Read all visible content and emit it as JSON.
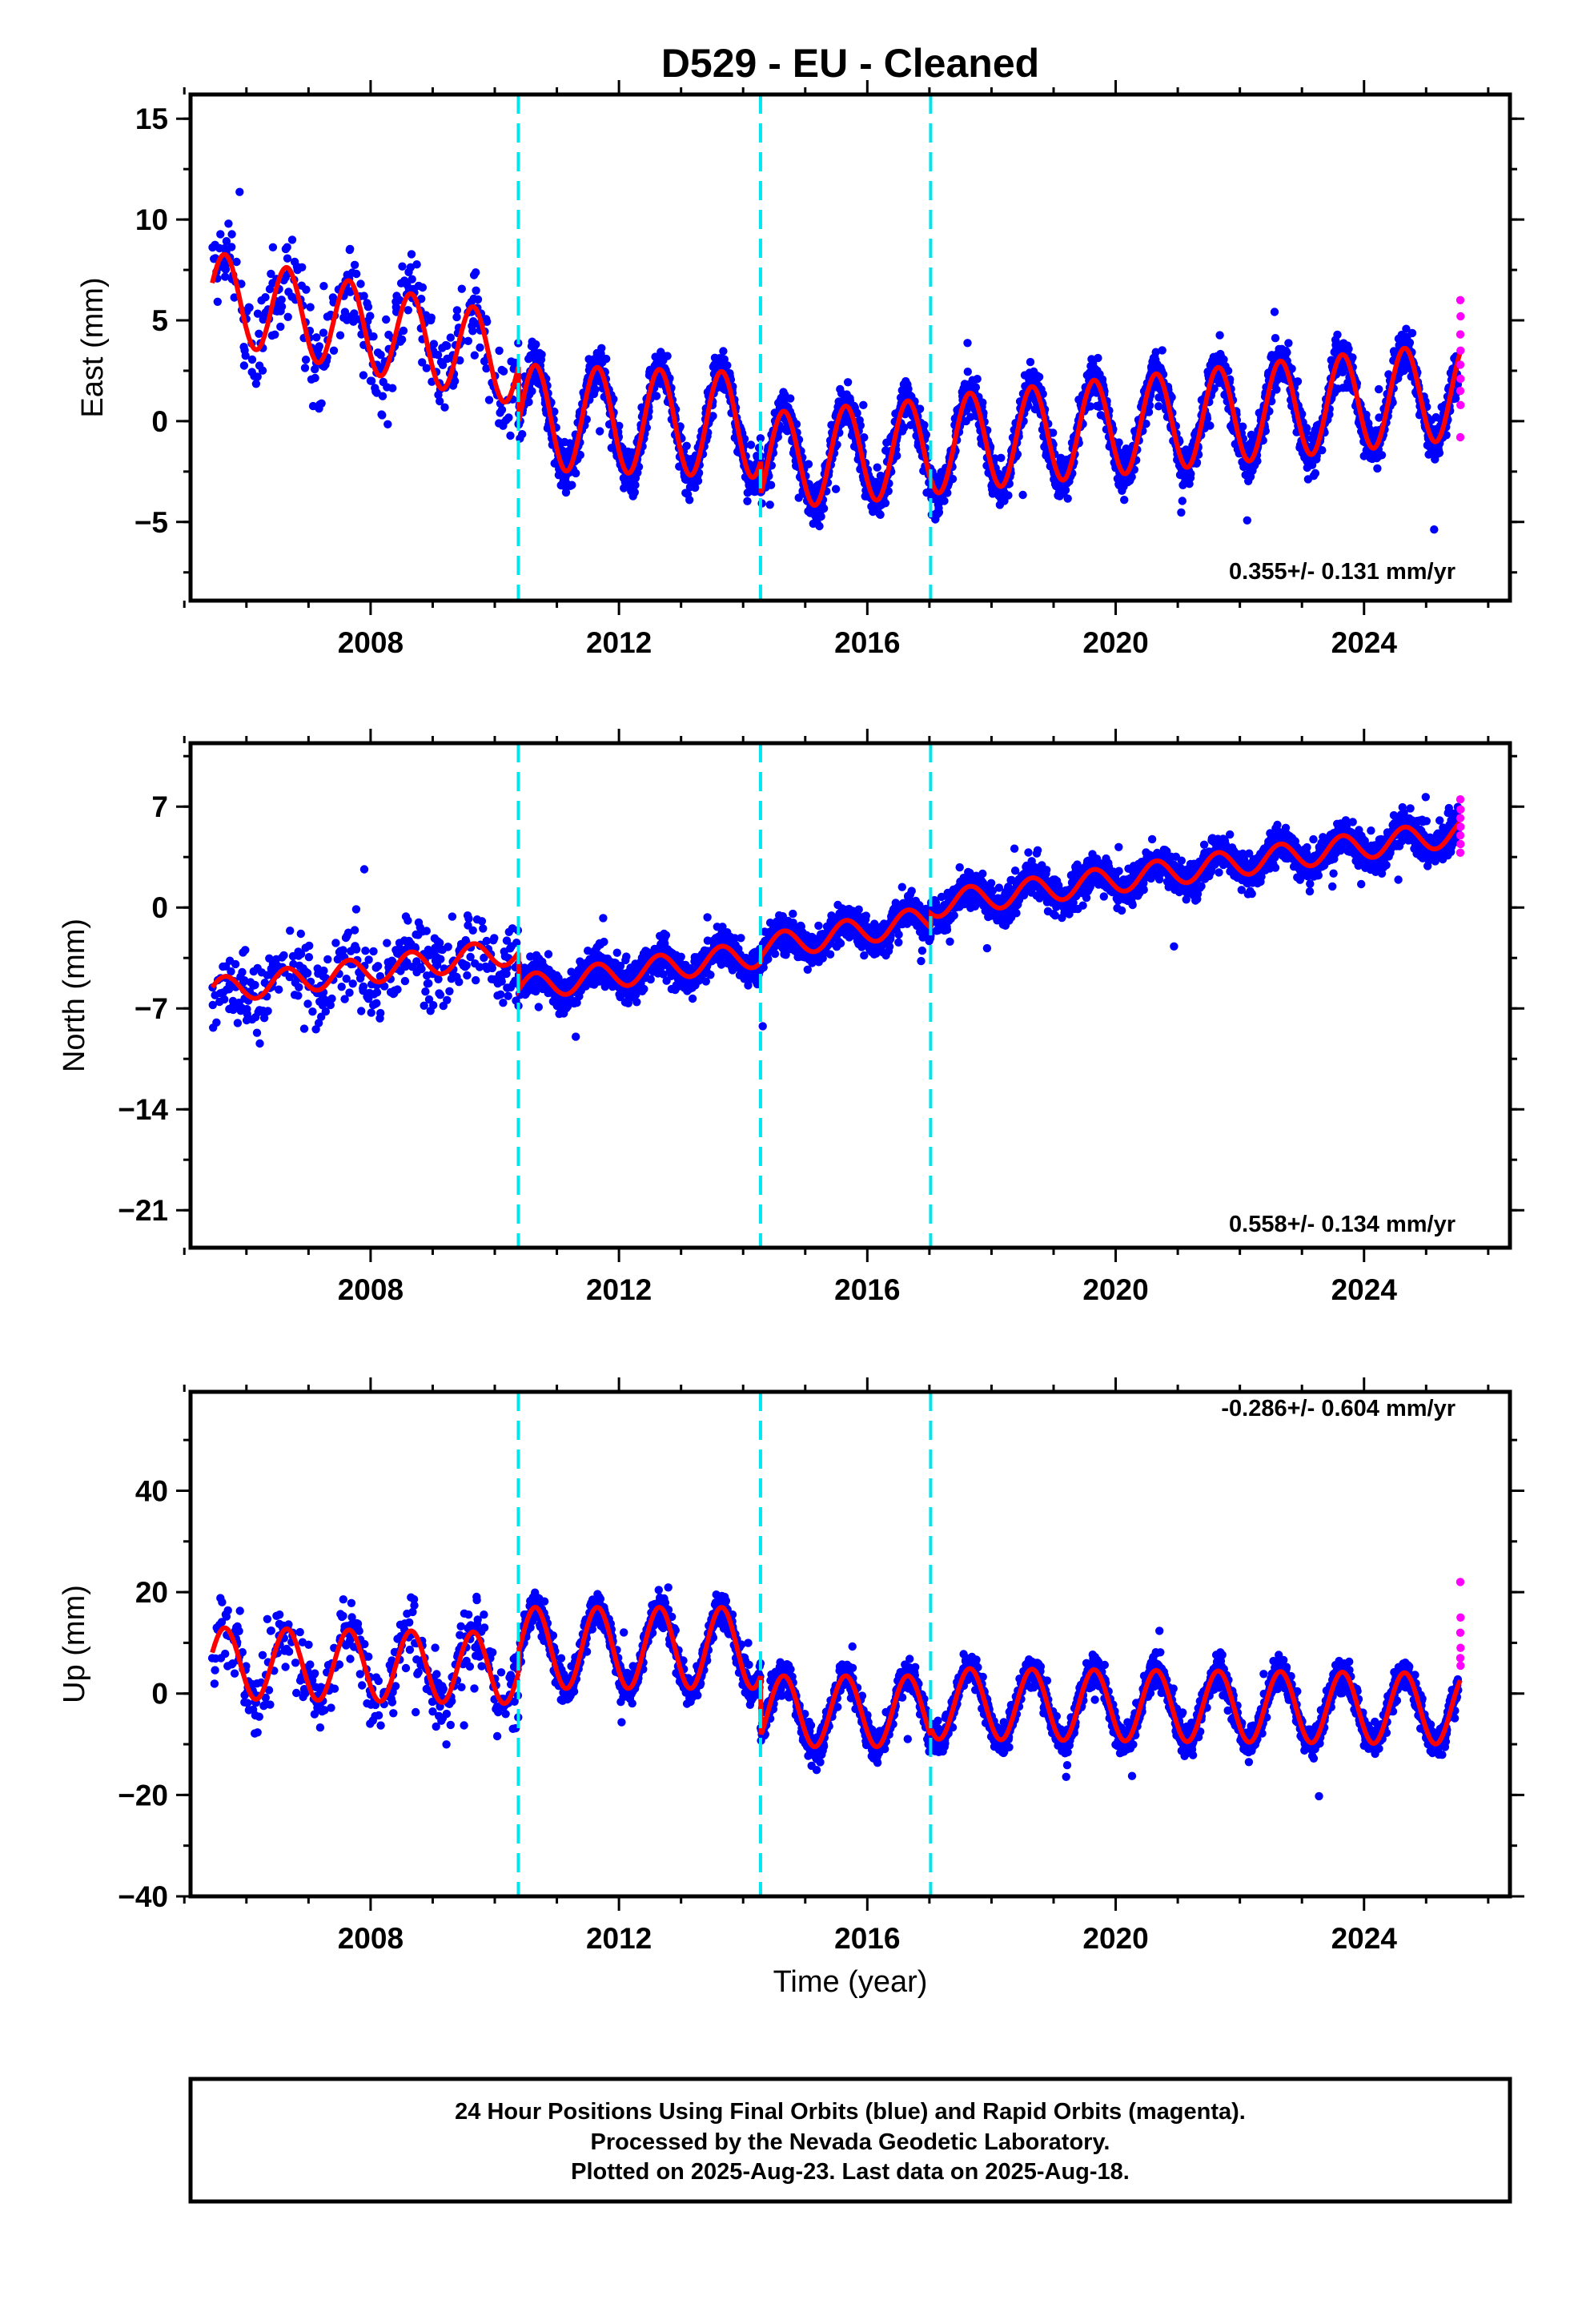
{
  "chart_data": {
    "type": "scatter",
    "title": "D529  - EU - Cleaned",
    "xlabel": "Time (year)",
    "xlim": [
      2005.1,
      2026.35
    ],
    "xticks": [
      2008,
      2012,
      2016,
      2020,
      2024
    ],
    "offsets": [
      2010.38,
      2014.28,
      2017.02
    ],
    "colors": {
      "final": "#0000ff",
      "rapid": "#ff00ff",
      "model": "#ff0000",
      "offset": "#00e5ee",
      "frame": "#000000"
    },
    "series_labels": {
      "final": "Final Orbits (blue)",
      "rapid": "Rapid Orbits (magenta)"
    },
    "panels": [
      {
        "component": "east",
        "ylabel": "East (mm)",
        "ylim": [
          -8.9,
          16.2
        ],
        "yticks": [
          -5,
          0,
          5,
          10,
          15
        ],
        "yticklabels": [
          "−5",
          "0",
          "5",
          "10",
          "15"
        ],
        "rate_label": "0.355+/- 0.131 mm/yr",
        "model_segments": [
          {
            "from": 2005.45,
            "to": 2010.38,
            "start": 6.2,
            "end": 3.0,
            "amp": 2.2
          },
          {
            "from": 2010.38,
            "to": 2014.28,
            "start": 0.2,
            "end": -0.2,
            "amp": 2.6
          },
          {
            "from": 2014.28,
            "to": 2017.02,
            "start": -2.0,
            "end": -1.3,
            "amp": 2.4
          },
          {
            "from": 2017.02,
            "to": 2025.55,
            "start": -1.2,
            "end": 1.5,
            "amp": 2.4
          }
        ],
        "scatter_noise": 1.4,
        "early_noise": 3.0,
        "rapid_values": [
          6.0,
          5.2,
          4.3,
          3.5,
          2.8,
          2.1,
          1.5,
          0.8,
          -0.8
        ]
      },
      {
        "component": "north",
        "ylabel": "North (mm)",
        "ylim": [
          -23.6,
          11.4
        ],
        "yticks": [
          -21,
          -14,
          -7,
          0,
          7
        ],
        "yticklabels": [
          "−21",
          "−14",
          "−7",
          "0",
          "7"
        ],
        "rate_label": "0.558+/- 0.134 mm/yr",
        "model_segments": [
          {
            "from": 2005.45,
            "to": 2010.38,
            "start": -5.8,
            "end": -3.0,
            "amp": 0.9
          },
          {
            "from": 2010.38,
            "to": 2014.28,
            "start": -5.6,
            "end": -3.2,
            "amp": 0.9
          },
          {
            "from": 2014.28,
            "to": 2017.02,
            "start": -2.8,
            "end": -0.8,
            "amp": 0.9
          },
          {
            "from": 2017.02,
            "to": 2025.55,
            "start": 0.2,
            "end": 5.2,
            "amp": 0.9
          }
        ],
        "scatter_noise": 1.6,
        "early_noise": 3.5,
        "rapid_values": [
          7.5,
          6.8,
          6.2,
          5.6,
          5.0,
          4.4,
          3.8
        ]
      },
      {
        "component": "up",
        "ylabel": "Up (mm)",
        "ylim": [
          -40,
          59.5
        ],
        "yticks": [
          -40,
          -20,
          0,
          20,
          40
        ],
        "yticklabels": [
          "−40",
          "−20",
          "0",
          "20",
          "40"
        ],
        "rate_label": "-0.286+/- 0.604 mm/yr",
        "model_segments": [
          {
            "from": 2005.45,
            "to": 2010.38,
            "start": 6.0,
            "end": 5.0,
            "amp": 7.0
          },
          {
            "from": 2010.38,
            "to": 2014.28,
            "start": 9.0,
            "end": 9.0,
            "amp": 8.0
          },
          {
            "from": 2014.28,
            "to": 2017.02,
            "start": -3.5,
            "end": -3.5,
            "amp": 7.0
          },
          {
            "from": 2017.02,
            "to": 2025.55,
            "start": -2.0,
            "end": -3.0,
            "amp": 7.0
          }
        ],
        "scatter_noise": 4.0,
        "early_noise": 9.0,
        "rapid_values": [
          22.0,
          15.0,
          12.0,
          9.0,
          7.0,
          5.5
        ]
      }
    ]
  },
  "footer": {
    "line1": "24 Hour Positions Using Final Orbits (blue) and Rapid Orbits (magenta).",
    "line2": "Processed by the Nevada Geodetic Laboratory.",
    "line3": "Plotted on 2025-Aug-23. Last data on 2025-Aug-18."
  }
}
